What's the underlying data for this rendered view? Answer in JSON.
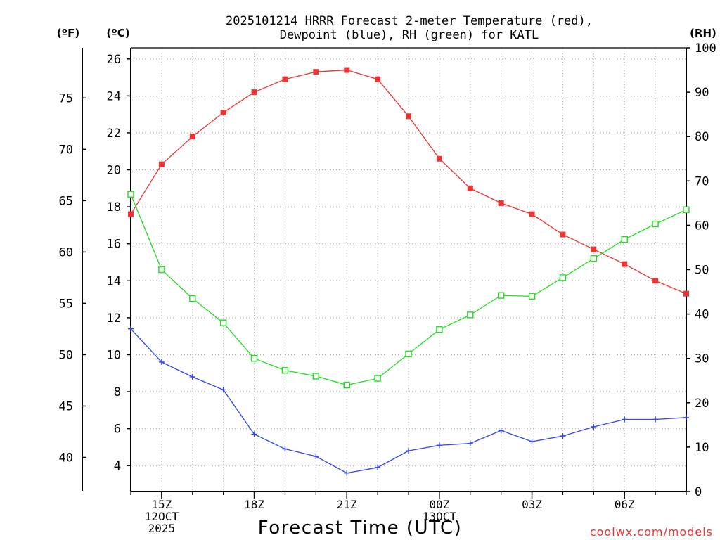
{
  "chart_data": {
    "type": "line",
    "title_line1": "2025101214 HRRR Forecast 2-meter Temperature (red),",
    "title_line2": "Dewpoint (blue), RH (green) for KATL",
    "xlabel": "Forecast Time (UTC)",
    "watermark": "coolwx.com/models",
    "left_outer_axis_label": "(ºF)",
    "left_axis_label": "(ºC)",
    "right_axis_label": "(RH)",
    "x_hours": [
      14,
      15,
      16,
      17,
      18,
      19,
      20,
      21,
      22,
      23,
      24,
      25,
      26,
      27,
      28,
      29,
      30,
      31,
      32
    ],
    "x_range": [
      14,
      32
    ],
    "x_ticks": [
      {
        "hour": 15,
        "lines": [
          "15Z",
          "12OCT",
          "2025"
        ]
      },
      {
        "hour": 18,
        "lines": [
          "18Z"
        ]
      },
      {
        "hour": 21,
        "lines": [
          "21Z"
        ]
      },
      {
        "hour": 24,
        "lines": [
          "00Z",
          "13OCT"
        ]
      },
      {
        "hour": 27,
        "lines": [
          "03Z"
        ]
      },
      {
        "hour": 30,
        "lines": [
          "06Z"
        ]
      }
    ],
    "celsius_range": [
      2.6,
      26.6
    ],
    "celsius_ticks": [
      4,
      6,
      8,
      10,
      12,
      14,
      16,
      18,
      20,
      22,
      24,
      26
    ],
    "fahrenheit_ticks": [
      40,
      45,
      50,
      55,
      60,
      65,
      70,
      75
    ],
    "rh_range": [
      0,
      100
    ],
    "rh_ticks": [
      0,
      10,
      20,
      30,
      40,
      50,
      60,
      70,
      80,
      90,
      100
    ],
    "series": [
      {
        "name": "Temperature",
        "unit": "C",
        "color": "#ee3333",
        "marker": "filled-square",
        "values": [
          17.6,
          20.3,
          21.8,
          23.1,
          24.2,
          24.9,
          25.3,
          25.4,
          24.9,
          22.9,
          20.6,
          19.0,
          18.2,
          17.6,
          16.5,
          15.7,
          14.9,
          14.0,
          13.3
        ]
      },
      {
        "name": "Dewpoint",
        "unit": "C",
        "color": "#3344ee",
        "marker": "plus",
        "values": [
          11.4,
          9.6,
          8.8,
          8.1,
          5.7,
          4.9,
          4.5,
          3.6,
          3.9,
          4.8,
          5.1,
          5.2,
          5.9,
          5.3,
          5.6,
          6.1,
          6.5,
          6.5,
          6.6
        ]
      },
      {
        "name": "RH",
        "unit": "%",
        "color": "#22dd22",
        "marker": "open-square",
        "values": [
          67,
          50,
          43.5,
          38,
          30,
          27.3,
          26,
          24,
          25.5,
          31,
          36.5,
          39.8,
          44.2,
          44,
          48.2,
          52.5,
          56.8,
          60.3,
          63.5
        ]
      }
    ]
  }
}
